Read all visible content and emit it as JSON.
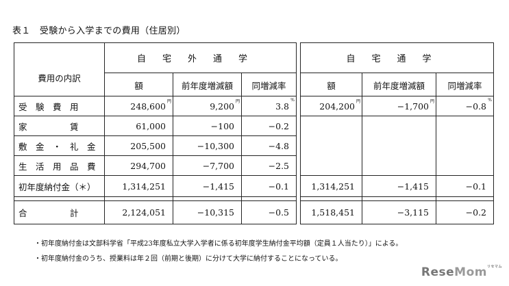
{
  "title": "表１　受験から入学までの費用（住居別）",
  "headers": {
    "row_label": "費用の内訳",
    "group1": "自宅外通学",
    "group2": "自宅通学",
    "cols": [
      "額",
      "前年度増減額",
      "同増減率"
    ]
  },
  "units": {
    "yen": "円",
    "percent": "%"
  },
  "rows": [
    {
      "label": "受　験　費　用",
      "g1": [
        "248,600",
        "9,200",
        "3.8"
      ],
      "g2": [
        "204,200",
        "−1,700",
        "−0.8"
      ]
    },
    {
      "label": "家　　　　　賃",
      "g1": [
        "61,000",
        "−100",
        "−0.2"
      ],
      "g2": [
        "",
        "",
        ""
      ]
    },
    {
      "label": "敷　金　・　礼　金",
      "g1": [
        "205,500",
        "−10,300",
        "−4.8"
      ],
      "g2": [
        "",
        "",
        ""
      ]
    },
    {
      "label": "生　活　用　品　費",
      "g1": [
        "294,700",
        "−7,700",
        "−2.5"
      ],
      "g2": [
        "",
        "",
        ""
      ]
    },
    {
      "label": "初年度納付金（＊）",
      "g1": [
        "1,314,251",
        "−1,415",
        "−0.1"
      ],
      "g2": [
        "1,314,251",
        "−1,415",
        "−0.1"
      ]
    },
    {
      "label": "合　　　　　計",
      "g1": [
        "2,124,051",
        "−10,315",
        "−0.5"
      ],
      "g2": [
        "1,518,451",
        "−3,115",
        "−0.2"
      ]
    }
  ],
  "notes": [
    "・初年度納付金は文部科学省「平成23年度私立大学入学者に係る初年度学生納付金平均額（定員１人当たり）」による。",
    "・初年度納付金のうち、授業料は年２回（前期と後期）に分けて大学に納付することになっている。"
  ],
  "logo": {
    "text1": "Rese",
    "text2": "Mom",
    "small": "リセマム"
  }
}
